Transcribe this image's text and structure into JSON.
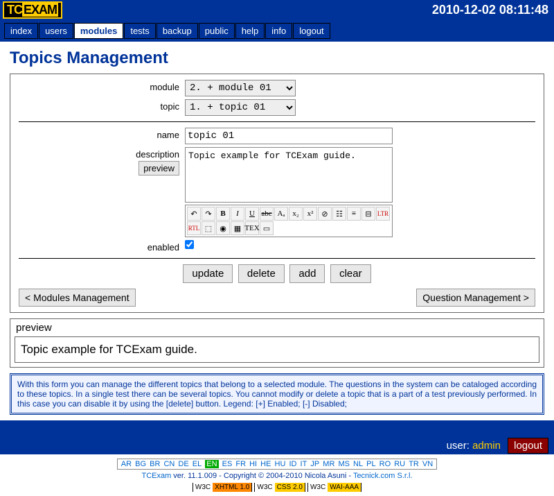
{
  "timestamp": "2010-12-02 08:11:48",
  "menu": [
    "index",
    "users",
    "modules",
    "tests",
    "backup",
    "public",
    "help",
    "info",
    "logout"
  ],
  "menu_active": "modules",
  "title": "Topics Management",
  "labels": {
    "module": "module",
    "topic": "topic",
    "name": "name",
    "description": "description",
    "preview_btn": "preview",
    "enabled": "enabled"
  },
  "module_sel": "2. + module 01",
  "topic_sel": "1. + topic 01",
  "name_val": "topic 01",
  "desc_val": "Topic example for TCExam guide.",
  "enabled": true,
  "buttons": {
    "update": "update",
    "delete": "delete",
    "add": "add",
    "clear": "clear",
    "back": "< Modules Management",
    "fwd": "Question Management >"
  },
  "preview": {
    "head": "preview",
    "body": "Topic example for TCExam guide."
  },
  "help": "With this form you can manage the different topics that belong to a selected module. The questions in the system can be cataloged according to these topics. In a single test there can be several topics. You cannot modify or delete a topic that is a part of a test previously performed. In this case you can disable it by using the [delete] button. Legend: [+] Enabled; [-] Disabled;",
  "user": {
    "label": "user:",
    "name": "admin",
    "logout": "logout"
  },
  "langs": [
    "AR",
    "BG",
    "BR",
    "CN",
    "DE",
    "EL",
    "EN",
    "ES",
    "FR",
    "HI",
    "HE",
    "HU",
    "ID",
    "IT",
    "JP",
    "MR",
    "MS",
    "NL",
    "PL",
    "RO",
    "RU",
    "TR",
    "VN"
  ],
  "lang_cur": "EN",
  "copyright": {
    "app": "TCExam",
    "ver": " ver. 11.1.009 - Copyright © 2004-2010 Nicola Asuni - ",
    "link": "Tecnick.com S.r.l."
  },
  "badges": [
    [
      "W3C",
      "XHTML 1.0"
    ],
    [
      "W3C",
      "CSS 2.0"
    ],
    [
      "W3C",
      "WAI-AAA"
    ]
  ],
  "tool_icons": [
    "↶",
    "↷",
    "B",
    "I",
    "U",
    "abc",
    "Aₐ",
    "x₂",
    "x²",
    "⊘",
    "☷",
    "≡",
    "⊟",
    "LTR",
    "RTL",
    "⬚",
    "◉",
    "▦",
    "TEX",
    "▭"
  ]
}
